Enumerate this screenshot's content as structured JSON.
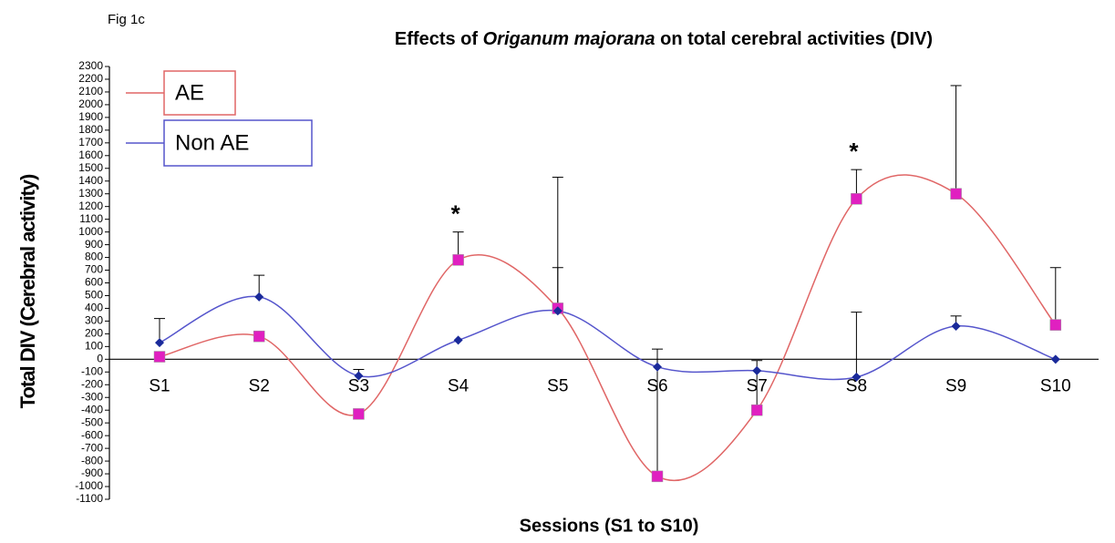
{
  "figure_label": "Fig 1c",
  "chart_data": {
    "type": "line",
    "title": [
      {
        "text": "Effects of "
      },
      {
        "text": "Origanum majorana",
        "italic": true
      },
      {
        "text": " on total cerebral activities (DIV)"
      }
    ],
    "x_label": "Sessions (S1 to S10)",
    "y_label": "Total DIV (Cerebral activity)",
    "categories": [
      "S1",
      "S2",
      "S3",
      "S4",
      "S5",
      "S6",
      "S7",
      "S8",
      "S9",
      "S10"
    ],
    "series": [
      {
        "name": "AE",
        "color": "#e06666",
        "marker_color": "#e020c0",
        "values": [
          20,
          180,
          -430,
          780,
          400,
          -920,
          -400,
          1260,
          1300,
          270
        ],
        "errors": [
          null,
          null,
          null,
          220,
          1030,
          1000,
          390,
          230,
          850,
          450
        ]
      },
      {
        "name": "Non AE",
        "color": "#5555cc",
        "marker_color": "#1a2a9a",
        "values": [
          130,
          490,
          -130,
          150,
          380,
          -60,
          -90,
          -140,
          260,
          0
        ],
        "errors": [
          190,
          170,
          50,
          null,
          340,
          null,
          null,
          510,
          80,
          null
        ]
      }
    ],
    "annotations": [
      {
        "text": "*",
        "category": 3,
        "color": "#e02020"
      },
      {
        "text": "*",
        "category": 7,
        "color": "#e02020"
      }
    ],
    "ylim": [
      -1100,
      2300
    ],
    "yticks": [
      -1100,
      -1000,
      -900,
      -800,
      -700,
      -600,
      -500,
      -400,
      -300,
      -200,
      -100,
      0,
      100,
      200,
      300,
      400,
      500,
      600,
      700,
      800,
      900,
      1000,
      1100,
      1200,
      1300,
      1400,
      1500,
      1600,
      1700,
      1800,
      1900,
      2000,
      2100,
      2200,
      2300
    ]
  }
}
